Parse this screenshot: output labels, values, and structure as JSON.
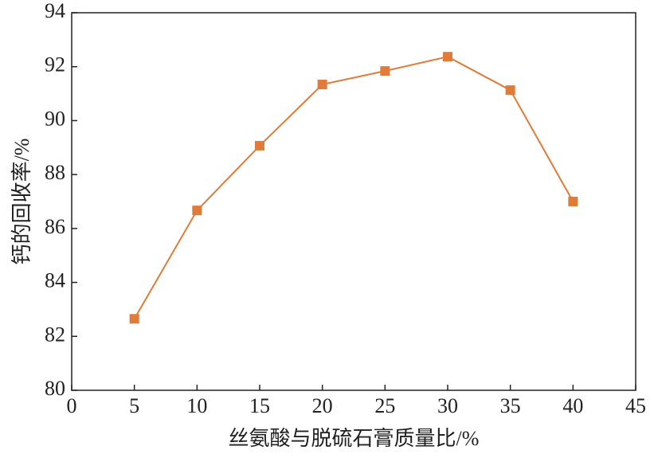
{
  "chart_data": {
    "type": "line",
    "x_label": "丝氨酸与脱硫石膏质量比/%",
    "y_label": "钙的回收率/%",
    "x": [
      5,
      10,
      15,
      20,
      25,
      30,
      35,
      40
    ],
    "series": [
      {
        "color": "#e07b39",
        "values": [
          82.65,
          86.67,
          89.07,
          91.34,
          91.84,
          92.37,
          91.13,
          87.0
        ]
      }
    ],
    "xlim": [
      0,
      45
    ],
    "xticks": [
      0,
      5,
      10,
      15,
      20,
      25,
      30,
      35,
      40,
      45
    ],
    "ylim": [
      80,
      94
    ],
    "yticks": [
      80,
      82,
      84,
      86,
      88,
      90,
      92,
      94
    ],
    "marker": "square"
  }
}
